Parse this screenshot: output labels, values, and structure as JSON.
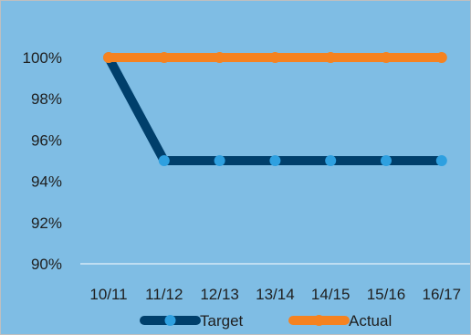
{
  "chart_data": {
    "type": "line",
    "categories": [
      "10/11",
      "11/12",
      "12/13",
      "13/14",
      "14/15",
      "15/16",
      "16/17"
    ],
    "series": [
      {
        "name": "Target",
        "values": [
          100,
          95,
          95,
          95,
          95,
          95,
          95
        ],
        "color": "#003f6b",
        "marker_color": "#2ea0e0"
      },
      {
        "name": "Actual",
        "values": [
          100,
          100,
          100,
          100,
          100,
          100,
          100
        ],
        "color": "#f58220",
        "marker_color": "#f58220"
      }
    ],
    "y_ticks": [
      "90%",
      "92%",
      "94%",
      "96%",
      "98%",
      "100%"
    ],
    "ylim": [
      90,
      100
    ],
    "y_unit": "%",
    "grid": false,
    "legend_position": "bottom",
    "title": "",
    "xlabel": "",
    "ylabel": "",
    "colors": {
      "plot_background": "#7fbde4",
      "axis_line": "#ffffff",
      "frame": "#bfbfbf"
    }
  }
}
